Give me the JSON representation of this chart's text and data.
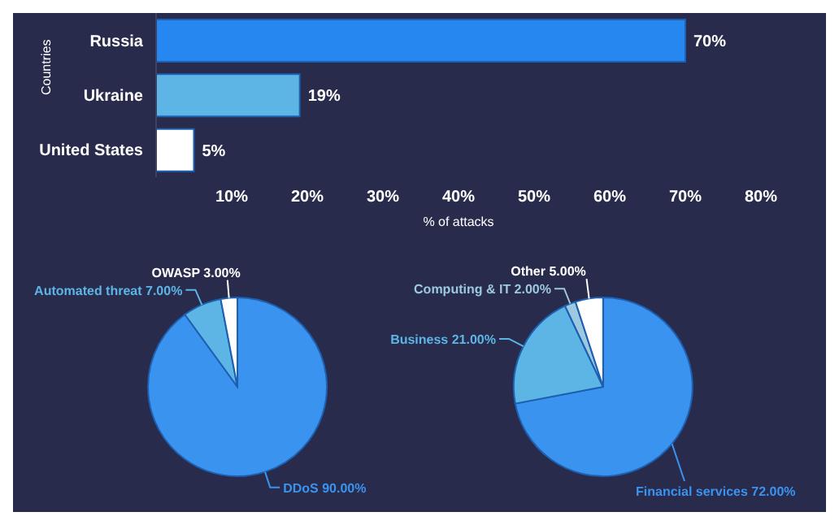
{
  "chart_data": [
    {
      "type": "bar",
      "orientation": "horizontal",
      "categories": [
        "Russia",
        "Ukraine",
        "United States"
      ],
      "values": [
        70,
        19,
        5
      ],
      "colors": [
        "#2787f0",
        "#5db5e6",
        "#ffffff"
      ],
      "value_labels": [
        "70%",
        "19%",
        "5%"
      ],
      "xlim": [
        0,
        80
      ],
      "xticks": [
        {
          "value": 10,
          "label": "10%"
        },
        {
          "value": 20,
          "label": "20%"
        },
        {
          "value": 30,
          "label": "30%"
        },
        {
          "value": 40,
          "label": "40%"
        },
        {
          "value": 50,
          "label": "50%"
        },
        {
          "value": 60,
          "label": "60%"
        },
        {
          "value": 70,
          "label": "70%"
        },
        {
          "value": 80,
          "label": "80%"
        }
      ],
      "xlabel": "% of attacks",
      "ylabel": "Countries",
      "grid": false,
      "legend": false
    },
    {
      "type": "pie",
      "categories": [
        "DDoS",
        "Automated threat",
        "OWASP"
      ],
      "values": [
        90,
        7,
        3
      ],
      "colors": [
        "#3b93f0",
        "#5db5e6",
        "#ffffff"
      ],
      "value_labels": [
        "90.00%",
        "7.00%",
        "3.00%"
      ],
      "legend": false
    },
    {
      "type": "pie",
      "categories": [
        "Financial services",
        "Business",
        "Computing & IT",
        "Other"
      ],
      "values": [
        72,
        21,
        2,
        5
      ],
      "colors": [
        "#3b93f0",
        "#5db5e6",
        "#9cc8e0",
        "#ffffff"
      ],
      "value_labels": [
        "72.00%",
        "21.00%",
        "2.00%",
        "5.00%"
      ],
      "legend": false
    }
  ]
}
